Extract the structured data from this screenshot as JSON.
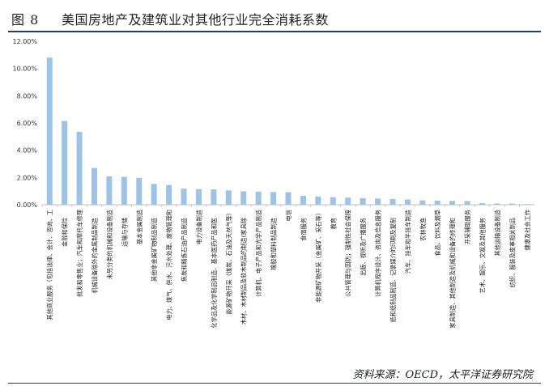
{
  "figure": {
    "number": "图 8",
    "title": "美国房地产及建筑业对其他行业完全消耗系数",
    "source": "资料来源：OECD，太平洋证券研究院"
  },
  "chart_data": {
    "type": "bar",
    "title": "",
    "xlabel": "",
    "ylabel": "",
    "ylim": [
      0,
      0.12
    ],
    "yticks": [
      "0.00%",
      "2.00%",
      "4.00%",
      "6.00%",
      "8.00%",
      "10.00%",
      "12.00%"
    ],
    "grid": false,
    "legend": "none",
    "bar_color": "#9dc3e6",
    "categories": [
      "其他商业服务（包括法律、会计、咨询、工",
      "金融和保险",
      "批发和零售业；汽车和摩托车修理",
      "机械设备除外的金属制品制造",
      "未另分类的机械和设备制造",
      "运输与存储",
      "基本金属制造",
      "其他非金属矿物制品制造",
      "电力、煤气、供水、污水处理、废物管理和",
      "焦炭和精炼石油产品制造",
      "电力设备制造",
      "化学品及化学制品制造、基本医药产品和医",
      "能源矿物开采（煤炭、石油及天然气等）",
      "木材、木材制品及软木制品的制造(家具除",
      "计算机、电子产品和光学产品制造",
      "橡胶和塑料制品制造",
      "电信",
      "食宿服务",
      "非能源矿物开采（金属矿、采石等）",
      "教育",
      "公共管理与国防；强制性社会保障",
      "出版、视听及广播服务",
      "计算机程序设计、咨询及信息服务",
      "纸和纸制品制造、记录媒介的印刷及复制",
      "汽车、挂车和半挂车制造",
      "农林牧渔",
      "食品、饮料及烟草",
      "家具制造、其他制造及机械和设备的修理和",
      "开采辅助服务",
      "艺术、娱乐、文娱及其他服务",
      "其他运输设备制造",
      "纺织、服装及皮革相关制品",
      "健康及社会工作"
    ],
    "values": [
      0.108,
      0.0615,
      0.0535,
      0.027,
      0.0208,
      0.0205,
      0.0197,
      0.0153,
      0.0145,
      0.0118,
      0.0115,
      0.0113,
      0.0105,
      0.0098,
      0.0096,
      0.0093,
      0.0092,
      0.0065,
      0.006,
      0.0055,
      0.0052,
      0.0048,
      0.0045,
      0.0042,
      0.0038,
      0.0032,
      0.003,
      0.0028,
      0.0027,
      0.0012,
      0.0009,
      0.0008,
      0.0004
    ]
  }
}
